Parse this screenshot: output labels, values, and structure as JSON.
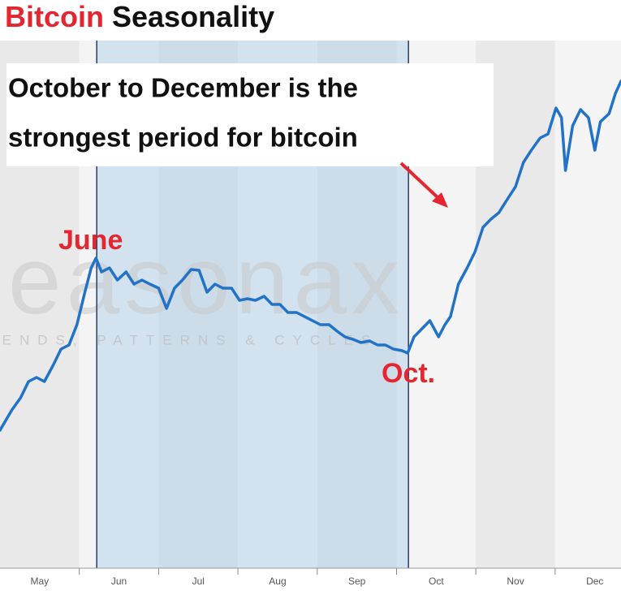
{
  "chart_data": {
    "type": "line",
    "title_highlight": "Bitcoin",
    "title": "Seasonality",
    "annotation": [
      "October to December is the",
      "strongest period for bitcoin"
    ],
    "start_label": "June",
    "end_label": "Oct.",
    "watermark": "seasonax",
    "watermark_subtitle": "TRENDS, PATTERNS & CYCLES",
    "categories": [
      "May",
      "Jun",
      "Jul",
      "Aug",
      "Sep",
      "Oct",
      "Nov",
      "Dec"
    ],
    "xlim": [
      0,
      7.83
    ],
    "xticks": [
      1,
      2,
      3,
      4,
      5,
      6,
      7
    ],
    "ylim": [
      0,
      650
    ],
    "highlight": [
      1.22,
      5.15
    ],
    "series": [
      {
        "color": "#2272c8",
        "x": [
          0,
          0.15,
          0.26,
          0.36,
          0.46,
          0.56,
          0.67,
          0.77,
          0.87,
          0.97,
          1.07,
          1.15,
          1.21,
          1.28,
          1.38,
          1.48,
          1.59,
          1.69,
          1.79,
          1.89,
          2.0,
          2.1,
          2.2,
          2.3,
          2.41,
          2.51,
          2.61,
          2.71,
          2.81,
          2.92,
          3.02,
          3.12,
          3.22,
          3.33,
          3.43,
          3.53,
          3.63,
          3.74,
          3.84,
          3.94,
          4.04,
          4.15,
          4.25,
          4.35,
          4.45,
          4.55,
          4.66,
          4.76,
          4.86,
          4.96,
          5.07,
          5.14,
          5.22,
          5.32,
          5.42,
          5.53,
          5.61,
          5.68,
          5.78,
          5.89,
          5.99,
          6.09,
          6.19,
          6.29,
          6.4,
          6.5,
          6.6,
          6.7,
          6.81,
          6.91,
          7.01,
          7.08,
          7.13,
          7.22,
          7.32,
          7.42,
          7.5,
          7.57,
          7.68,
          7.76,
          7.83
        ],
        "values": [
          170,
          195,
          210,
          230,
          235,
          230,
          250,
          270,
          275,
          300,
          340,
          370,
          382,
          365,
          370,
          355,
          365,
          350,
          355,
          350,
          345,
          320,
          345,
          355,
          368,
          367,
          340,
          350,
          345,
          345,
          330,
          332,
          330,
          335,
          325,
          325,
          315,
          315,
          310,
          305,
          300,
          300,
          292,
          285,
          282,
          278,
          280,
          275,
          275,
          270,
          268,
          265,
          285,
          295,
          305,
          285,
          300,
          310,
          350,
          370,
          390,
          420,
          430,
          438,
          455,
          470,
          500,
          515,
          530,
          535,
          567,
          555,
          490,
          545,
          565,
          555,
          515,
          550,
          560,
          585,
          600
        ]
      }
    ]
  }
}
